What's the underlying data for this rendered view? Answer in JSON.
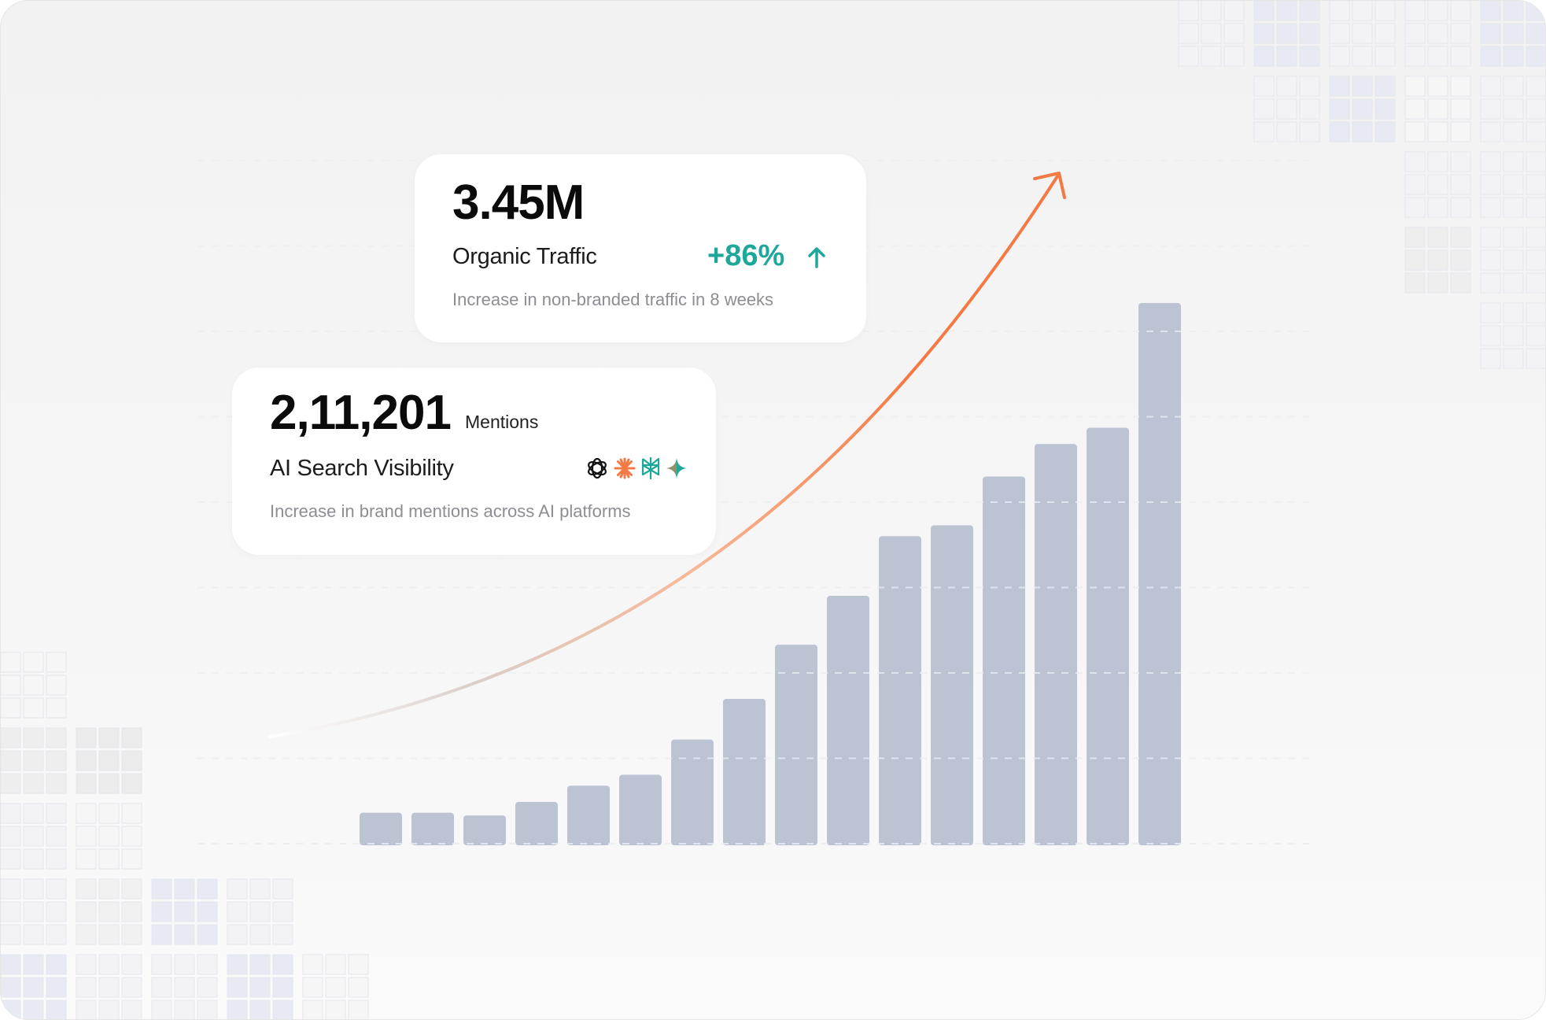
{
  "traffic_card": {
    "value": "3.45M",
    "label": "Organic Traffic",
    "change": "+86%",
    "change_icon": "arrow-up-icon",
    "description": "Increase in non-branded traffic in 8 weeks"
  },
  "ai_card": {
    "value": "2,11,201",
    "unit": "Mentions",
    "label": "AI Search Visibility",
    "platform_icons": [
      "openai-icon",
      "claude-icon",
      "perplexity-icon",
      "gemini-icon"
    ],
    "description": "Increase in brand mentions across AI platforms"
  },
  "colors": {
    "bar": "#bcc3d3",
    "accent": "#f47a45",
    "positive": "#1fa89a"
  },
  "chart_data": {
    "type": "bar",
    "title": "",
    "xlabel": "",
    "ylabel": "",
    "grid": true,
    "values": [
      6,
      6,
      5.5,
      8,
      11,
      13,
      19.5,
      27,
      37,
      46,
      57,
      59,
      68,
      74,
      77,
      100
    ],
    "ylim": [
      0,
      100
    ],
    "trend_arrow": "exponential-up"
  }
}
